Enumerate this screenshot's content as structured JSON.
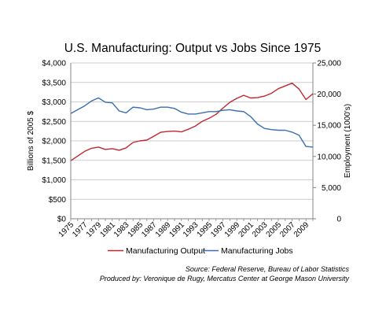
{
  "chart_data": {
    "type": "line",
    "title": "U.S. Manufacturing: Output vs Jobs Since 1975",
    "ylabel_left": "Billions of 2005 $",
    "ylabel_right": "Employment (1000's)",
    "xlabel": "",
    "x": [
      1975,
      1976,
      1977,
      1978,
      1979,
      1980,
      1981,
      1982,
      1983,
      1984,
      1985,
      1986,
      1987,
      1988,
      1989,
      1990,
      1991,
      1992,
      1993,
      1994,
      1995,
      1996,
      1997,
      1998,
      1999,
      2000,
      2001,
      2002,
      2003,
      2004,
      2005,
      2006,
      2007,
      2008,
      2009,
      2010
    ],
    "x_tick_labels": [
      "1975",
      "1977",
      "1979",
      "1981",
      "1983",
      "1985",
      "1987",
      "1989",
      "1991",
      "1993",
      "1995",
      "1997",
      "1999",
      "2001",
      "2003",
      "2005",
      "2007",
      "2009"
    ],
    "y_left_lim": [
      0,
      4000
    ],
    "y_left_ticks": [
      "$0",
      "$500",
      "$1,000",
      "$1,500",
      "$2,000",
      "$2,500",
      "$3,000",
      "$3,500",
      "$4,000"
    ],
    "y_right_lim": [
      0,
      25000
    ],
    "y_right_ticks": [
      "0",
      "5,000",
      "10,000",
      "15,000",
      "20,000",
      "25,000"
    ],
    "grid": true,
    "legend_position": "bottom",
    "series": [
      {
        "name": "Manufacturing Output",
        "axis": "left",
        "color": "#c0272d",
        "values": [
          1490,
          1610,
          1730,
          1810,
          1840,
          1780,
          1800,
          1760,
          1820,
          1960,
          2000,
          2020,
          2120,
          2220,
          2240,
          2250,
          2230,
          2300,
          2380,
          2500,
          2580,
          2680,
          2840,
          2990,
          3090,
          3170,
          3100,
          3110,
          3150,
          3220,
          3340,
          3410,
          3480,
          3330,
          3060,
          3210
        ]
      },
      {
        "name": "Manufacturing Jobs",
        "axis": "right",
        "color": "#3a6fb0",
        "values": [
          16900,
          17500,
          18100,
          18900,
          19400,
          18700,
          18600,
          17300,
          17000,
          17900,
          17800,
          17500,
          17600,
          17900,
          17900,
          17700,
          17100,
          16800,
          16800,
          17000,
          17200,
          17200,
          17400,
          17500,
          17300,
          17200,
          16400,
          15200,
          14500,
          14300,
          14200,
          14200,
          13900,
          13400,
          11600,
          11500
        ]
      }
    ],
    "source_line1": "Source: Federal Reserve, Bureau of Labor Statistics",
    "source_line2": "Produced by: Veronique de Rugy, Mercatus Center at George Mason University"
  }
}
